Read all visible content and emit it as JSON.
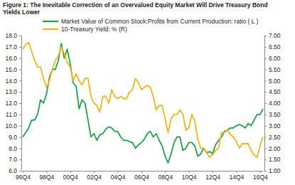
{
  "chart_data": {
    "type": "line",
    "title": "Figure 1: The Inevitable Correction of an Overvalued Equity Market Will Drive Treasury Bond Yields Lower",
    "legend": "top-left",
    "grid": false,
    "categories": [
      "96Q4",
      null,
      null,
      null,
      null,
      null,
      null,
      null,
      "98Q4",
      null,
      null,
      null,
      null,
      null,
      null,
      null,
      "00Q4",
      null,
      null,
      null,
      null,
      null,
      null,
      null,
      "02Q4",
      null,
      null,
      null,
      null,
      null,
      null,
      null,
      "04Q4",
      null,
      null,
      null,
      null,
      null,
      null,
      null,
      "06Q4",
      null,
      null,
      null,
      null,
      null,
      null,
      null,
      "08Q4",
      null,
      null,
      null,
      null,
      null,
      null,
      null,
      "10Q4",
      null,
      null,
      null,
      null,
      null,
      null,
      null,
      "12Q4",
      null,
      null,
      null,
      null,
      null,
      null,
      null,
      "14Q4",
      null,
      null,
      null,
      null,
      null,
      null,
      null,
      "16Q4",
      null
    ],
    "ylim": [
      6,
      18
    ],
    "yticks": [
      {
        "value": 6,
        "label": "6.0"
      },
      {
        "value": 7,
        "label": "7.0"
      },
      {
        "value": 8,
        "label": "8.0"
      },
      {
        "value": 9,
        "label": "9.0"
      },
      {
        "value": 10,
        "label": "10.0"
      },
      {
        "value": 11,
        "label": "11.0"
      },
      {
        "value": 12,
        "label": "12.0"
      },
      {
        "value": 13,
        "label": "13.0"
      },
      {
        "value": 14,
        "label": "14.0"
      },
      {
        "value": 15,
        "label": "15.0"
      },
      {
        "value": 16,
        "label": "16.0"
      },
      {
        "value": 17,
        "label": "17.0"
      },
      {
        "value": 18,
        "label": "18.0"
      }
    ],
    "y2lim": [
      1,
      7
    ],
    "y2ticks": [
      {
        "value": 1,
        "label": "1.00"
      },
      {
        "value": 1.5,
        "label": "1.50"
      },
      {
        "value": 2,
        "label": "2.00"
      },
      {
        "value": 2.5,
        "label": "2.50"
      },
      {
        "value": 3,
        "label": "3.00"
      },
      {
        "value": 3.5,
        "label": "3.50"
      },
      {
        "value": 4,
        "label": "4.00"
      },
      {
        "value": 4.5,
        "label": "4.50"
      },
      {
        "value": 5,
        "label": "5.00"
      },
      {
        "value": 5.5,
        "label": "5.50"
      },
      {
        "value": 6,
        "label": "6.00"
      },
      {
        "value": 6.5,
        "label": "6.50"
      },
      {
        "value": 7,
        "label": "7.00"
      }
    ],
    "series": [
      {
        "name": "Market Value of Common Stock:Profits from Current Production: ratio ( L )",
        "color": "#1fa34a",
        "axis": "y",
        "values": [
          9.0,
          9.4,
          9.8,
          10.5,
          10.5,
          11.0,
          12.3,
          12.0,
          12.8,
          14.3,
          15.0,
          15.0,
          15.8,
          17.3,
          16.0,
          16.8,
          15.5,
          13.8,
          13.5,
          11.5,
          12.3,
          12.0,
          10.5,
          9.0,
          9.3,
          8.7,
          9.2,
          9.3,
          9.7,
          9.9,
          9.8,
          9.5,
          9.5,
          9.0,
          8.7,
          8.7,
          8.6,
          8.5,
          8.0,
          8.3,
          8.5,
          8.8,
          9.3,
          9.5,
          9.0,
          9.3,
          8.7,
          8.2,
          7.3,
          6.7,
          7.5,
          8.5,
          9.0,
          9.0,
          7.8,
          8.0,
          8.5,
          8.5,
          8.2,
          7.3,
          7.5,
          8.0,
          7.6,
          7.7,
          7.5,
          8.3,
          8.7,
          9.0,
          9.5,
          9.6,
          9.8,
          9.8,
          10.0,
          10.1,
          10.0,
          9.8,
          10.2,
          10.0,
          10.5,
          11.0,
          11.0,
          11.5
        ]
      },
      {
        "name": "10-Treasury Yield: % (R)",
        "color": "#f2b51c",
        "axis": "y2",
        "values": [
          6.4,
          6.6,
          6.7,
          6.3,
          5.9,
          5.6,
          5.6,
          5.1,
          4.7,
          5.0,
          5.5,
          5.9,
          6.1,
          6.5,
          6.2,
          5.8,
          5.6,
          5.0,
          5.3,
          5.0,
          4.8,
          5.1,
          5.1,
          4.3,
          4.0,
          3.9,
          3.6,
          4.3,
          4.3,
          4.0,
          4.6,
          4.3,
          4.2,
          4.3,
          4.2,
          4.2,
          4.5,
          4.6,
          5.1,
          4.9,
          4.6,
          4.7,
          4.8,
          4.7,
          4.3,
          3.7,
          3.9,
          3.9,
          3.3,
          2.7,
          3.3,
          3.5,
          3.5,
          3.7,
          3.5,
          2.8,
          2.9,
          3.5,
          3.2,
          2.4,
          2.0,
          2.0,
          1.8,
          1.6,
          1.7,
          1.9,
          2.0,
          2.7,
          2.7,
          2.8,
          2.6,
          2.5,
          2.3,
          2.0,
          2.2,
          2.2,
          2.2,
          1.9,
          1.7,
          1.6,
          2.1,
          2.5
        ]
      }
    ]
  }
}
